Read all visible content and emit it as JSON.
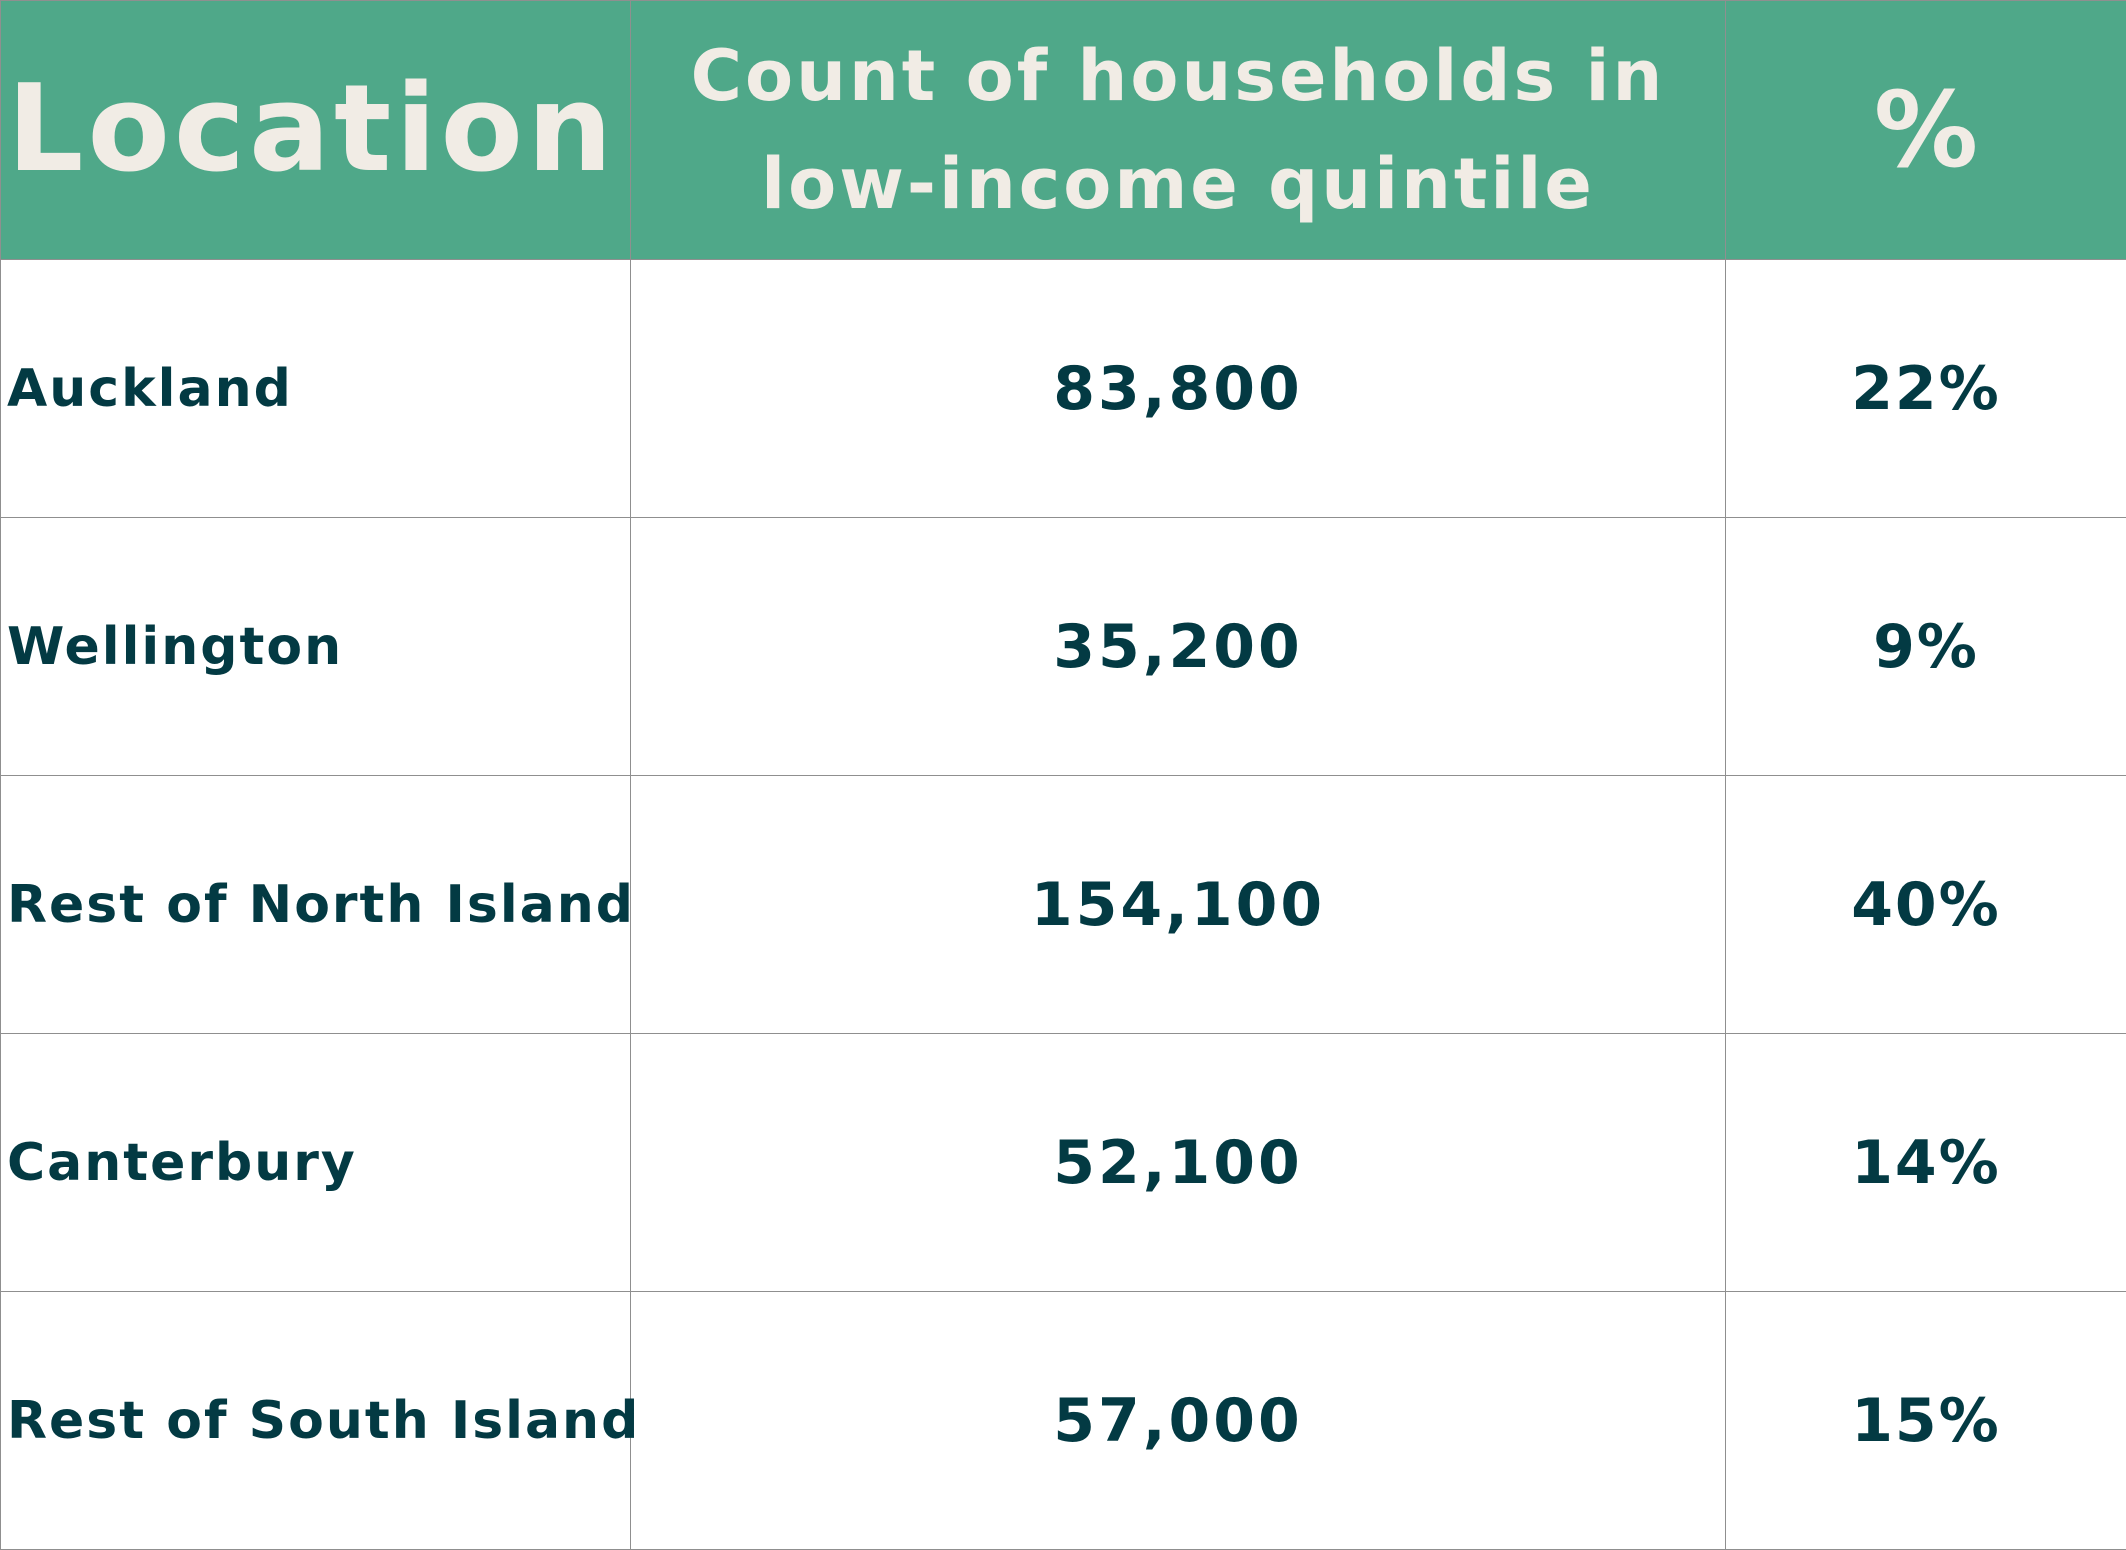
{
  "chart_data": {
    "type": "table",
    "columns": [
      "Location",
      "Count of households in low-income quintile",
      "%"
    ],
    "rows": [
      {
        "location": "Auckland",
        "count": "83,800",
        "percent": "22%"
      },
      {
        "location": "Wellington",
        "count": "35,200",
        "percent": "9%"
      },
      {
        "location": "Rest of North Island",
        "count": "154,100",
        "percent": "40%"
      },
      {
        "location": "Canterbury",
        "count": "52,100",
        "percent": "14%"
      },
      {
        "location": "Rest of South Island",
        "count": "57,000",
        "percent": "15%"
      }
    ],
    "values": [
      83800,
      35200,
      154100,
      52100,
      57000
    ],
    "percents": [
      22,
      9,
      40,
      14,
      15
    ]
  },
  "colors": {
    "header_bg": "#4fa889",
    "header_text": "#f1ece5",
    "body_text": "#033a43",
    "grid": "#8f8f8f"
  }
}
